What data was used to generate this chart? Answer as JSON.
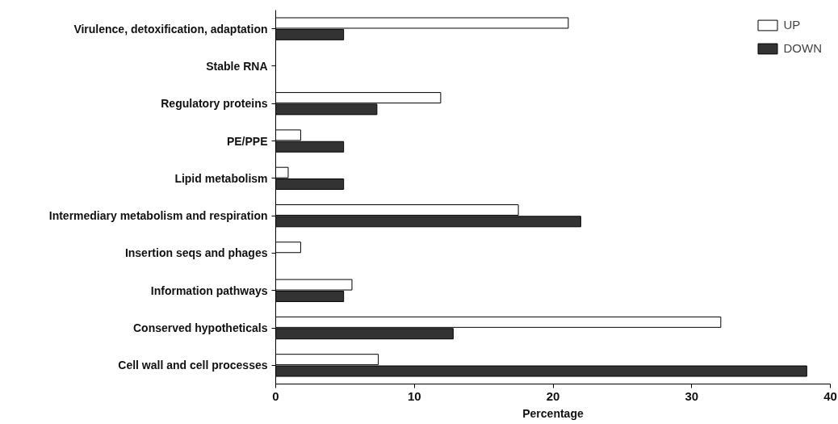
{
  "chart_data": {
    "type": "bar",
    "orientation": "horizontal",
    "xlabel": "Percentage",
    "categories": [
      "Virulence, detoxification, adaptation",
      "Stable RNA",
      "Regulatory proteins",
      "PE/PPE",
      "Lipid metabolism",
      "Intermediary metabolism and respiration",
      "Insertion seqs and phages",
      "Information pathways",
      "Conserved hypotheticals",
      "Cell wall and cell processes"
    ],
    "series": [
      {
        "name": "UP",
        "color": "#ffffff",
        "values": [
          21.1,
          null,
          11.9,
          1.8,
          0.9,
          17.5,
          1.8,
          5.5,
          32.1,
          7.4
        ]
      },
      {
        "name": "DOWN",
        "color": "#333333",
        "values": [
          4.9,
          null,
          7.3,
          4.9,
          4.9,
          22.0,
          null,
          4.9,
          12.8,
          38.3
        ]
      }
    ],
    "xlim": [
      0,
      40
    ],
    "xticks": [
      0,
      10,
      20,
      30,
      40
    ],
    "grid": false,
    "legend": "top right"
  }
}
